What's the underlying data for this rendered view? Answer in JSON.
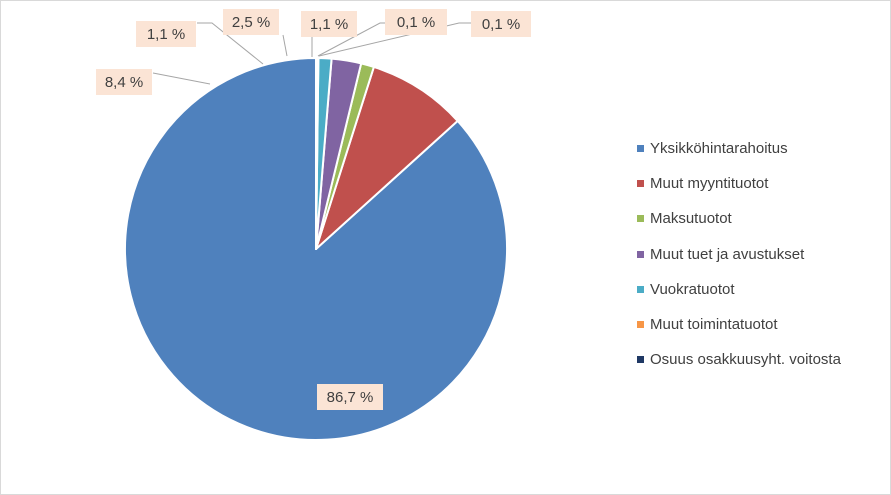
{
  "chart_data": {
    "type": "pie",
    "categories": [
      "Yksikköhintarahoitus",
      "Muut myyntituotot",
      "Maksutuotot",
      "Muut tuet ja avustukset",
      "Vuokratuotot",
      "Muut toimintatuotot",
      "Osuus osakkuusyht. voitosta"
    ],
    "values": [
      86.7,
      8.4,
      1.1,
      2.5,
      1.1,
      0.1,
      0.1
    ],
    "labels": [
      "86,7 %",
      "8,4 %",
      "1,1 %",
      "2,5 %",
      "1,1 %",
      "0,1 %",
      "0,1 %"
    ],
    "colors": [
      "#4f81bd",
      "#c0504d",
      "#9bbb59",
      "#8064a2",
      "#4bacc6",
      "#f79646",
      "#1f3864"
    ],
    "label_background": "#fbe4d5",
    "legend_position": "right",
    "start_angle": "12 o'clock",
    "direction": "counterclockwise"
  }
}
